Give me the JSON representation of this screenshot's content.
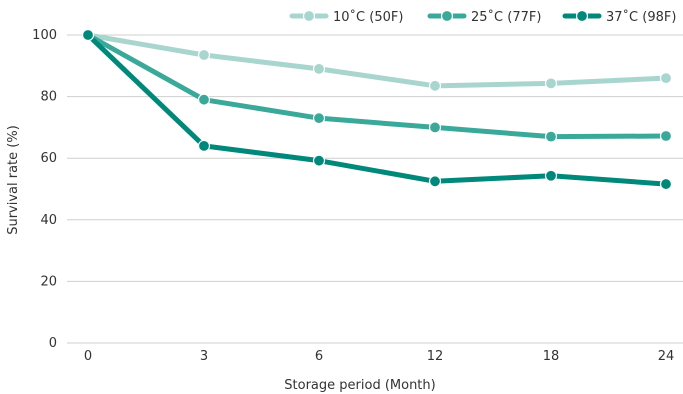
{
  "chart_data": {
    "type": "line",
    "xlabel": "Storage period (Month)",
    "ylabel": "Survival rate (%)",
    "categories": [
      "0",
      "3",
      "6",
      "12",
      "18",
      "24"
    ],
    "ylim": [
      0,
      100
    ],
    "yticks": [
      0,
      20,
      40,
      60,
      80,
      100
    ],
    "grid": "horizontal",
    "legend_position": "top-right",
    "series": [
      {
        "name": "10˚C (50F)",
        "color": "#a9d5cf",
        "values": [
          100,
          93.5,
          89,
          83.5,
          84.3,
          86
        ]
      },
      {
        "name": "25˚C (77F)",
        "color": "#3aa99a",
        "values": [
          100,
          79,
          73,
          70,
          67,
          67.2
        ]
      },
      {
        "name": "37˚C (98F)",
        "color": "#00897a",
        "values": [
          100,
          64,
          59.2,
          52.5,
          54.3,
          51.6
        ]
      }
    ]
  }
}
